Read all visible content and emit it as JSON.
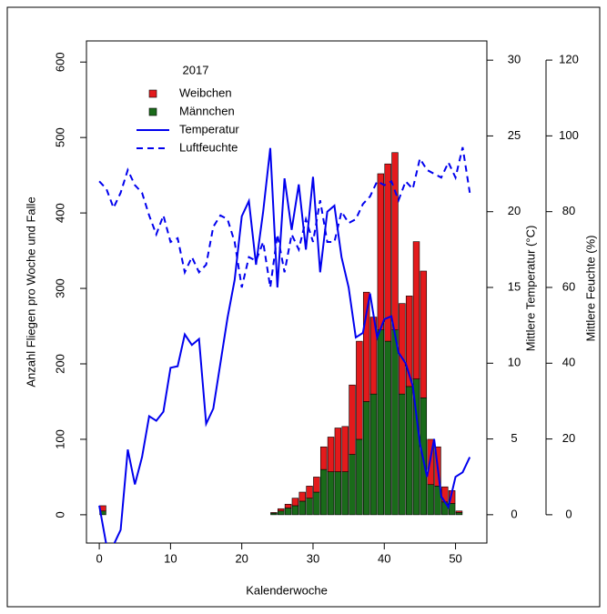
{
  "chart_data": {
    "type": "bar",
    "x": [
      0,
      1,
      2,
      3,
      4,
      5,
      6,
      7,
      8,
      9,
      10,
      11,
      12,
      13,
      14,
      15,
      16,
      17,
      18,
      19,
      20,
      21,
      22,
      23,
      24,
      25,
      26,
      27,
      28,
      29,
      30,
      31,
      32,
      33,
      34,
      35,
      36,
      37,
      38,
      39,
      40,
      41,
      42,
      43,
      44,
      45,
      46,
      47,
      48,
      49,
      50,
      51,
      52
    ],
    "series": [
      {
        "name": "Weibchen",
        "type": "bar",
        "color": "#e31a1c",
        "values": [
          7,
          0,
          0,
          0,
          0,
          0,
          0,
          0,
          0,
          0,
          0,
          0,
          0,
          0,
          0,
          0,
          0,
          0,
          0,
          0,
          0,
          0,
          0,
          0,
          1,
          3,
          5,
          10,
          12,
          16,
          20,
          30,
          46,
          58,
          60,
          92,
          130,
          145,
          102,
          207,
          235,
          235,
          120,
          120,
          182,
          168,
          60,
          52,
          20,
          17,
          2,
          0,
          0
        ]
      },
      {
        "name": "Männchen",
        "type": "bar",
        "color": "#1a6b1a",
        "values": [
          5,
          0,
          0,
          0,
          0,
          0,
          0,
          0,
          0,
          0,
          0,
          0,
          0,
          0,
          0,
          0,
          0,
          0,
          0,
          0,
          0,
          0,
          0,
          0,
          2,
          5,
          9,
          12,
          18,
          22,
          30,
          60,
          57,
          57,
          57,
          80,
          100,
          150,
          160,
          245,
          230,
          245,
          160,
          170,
          180,
          155,
          40,
          38,
          17,
          15,
          3,
          0,
          0
        ]
      },
      {
        "name": "Temperatur",
        "type": "line",
        "axis": "y2",
        "dashed": false,
        "color": "#0000ee",
        "values": [
          0.6,
          -2,
          -2,
          -1,
          4.3,
          2,
          3.8,
          6.5,
          6.2,
          6.8,
          9.7,
          9.8,
          11.9,
          11.2,
          11.6,
          6,
          7,
          10,
          13,
          15.5,
          19.7,
          20.7,
          16.5,
          20,
          24.2,
          15,
          22.2,
          18.8,
          21.8,
          17.5,
          22.3,
          16,
          20,
          20.4,
          17,
          15,
          11.7,
          12,
          14.6,
          11.7,
          12.9,
          13.1,
          10.7,
          10,
          8.5,
          4.7,
          2.5,
          5,
          1.2,
          0.5,
          2.5,
          2.8,
          3.8
        ]
      },
      {
        "name": "Luftfeuchte",
        "type": "line",
        "axis": "y3",
        "dashed": true,
        "color": "#0000ee",
        "values": [
          88,
          86,
          81,
          85,
          91,
          87,
          85,
          79,
          74,
          79,
          72,
          73,
          64,
          68,
          64,
          66,
          76,
          79,
          78,
          72,
          60,
          68,
          67,
          72,
          60,
          74,
          64,
          74,
          70,
          78,
          72,
          83,
          72,
          72,
          80,
          77,
          78,
          82,
          84,
          88,
          87,
          88,
          83,
          88,
          86,
          94,
          91,
          90,
          89,
          93,
          89,
          97,
          85
        ]
      }
    ],
    "legend_title": "2017",
    "xlabel": "Kalenderwoche",
    "ylabel": "Anzahl Fliegen pro Woche und Falle",
    "y2label": "Mittlere Temperatur (°C)",
    "y3label": "Mittlere Feuchte (%)",
    "xlim": [
      -1.8,
      54.4
    ],
    "xticks": [
      0,
      10,
      20,
      30,
      40,
      50
    ],
    "ylim": [
      -37.5,
      628
    ],
    "yticks": [
      0,
      100,
      200,
      300,
      400,
      500,
      600
    ],
    "y2lim": [
      -1.87,
      31.27
    ],
    "y2ticks": [
      0,
      5,
      10,
      15,
      20,
      25,
      30
    ],
    "y3lim": [
      -7.47,
      125.06
    ],
    "y3ticks": [
      0,
      20,
      40,
      60,
      80,
      100,
      120
    ],
    "legend": "top-left",
    "grid": false
  }
}
